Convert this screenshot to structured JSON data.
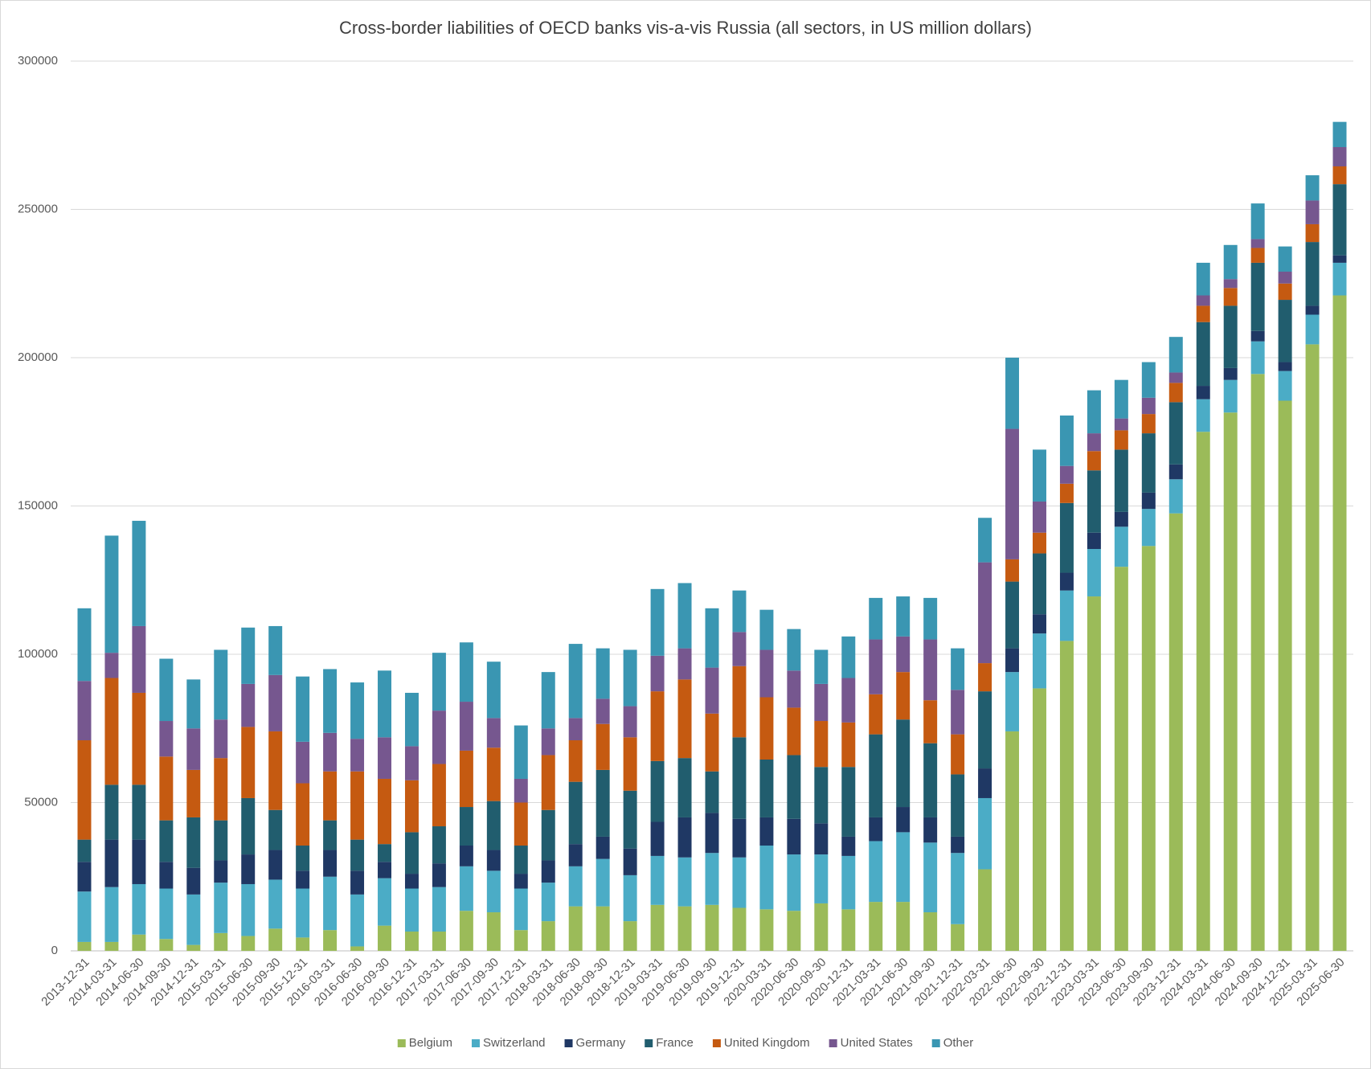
{
  "chart_data": {
    "type": "stacked_bar",
    "title": "Cross-border liabilities of OECD banks vis-a-vis Russia (all sectors, in US million dollars)",
    "categories": [
      "2013-12-31",
      "2014-03-31",
      "2014-06-30",
      "2014-09-30",
      "2014-12-31",
      "2015-03-31",
      "2015-06-30",
      "2015-09-30",
      "2015-12-31",
      "2016-03-31",
      "2016-06-30",
      "2016-09-30",
      "2016-12-31",
      "2017-03-31",
      "2017-06-30",
      "2017-09-30",
      "2017-12-31",
      "2018-03-31",
      "2018-06-30",
      "2018-09-30",
      "2018-12-31",
      "2019-03-31",
      "2019-06-30",
      "2019-09-30",
      "2019-12-31",
      "2020-03-31",
      "2020-06-30",
      "2020-09-30",
      "2020-12-31",
      "2021-03-31",
      "2021-06-30",
      "2021-09-30",
      "2021-12-31",
      "2022-03-31",
      "2022-06-30",
      "2022-09-30",
      "2022-12-31",
      "2023-03-31",
      "2023-06-30",
      "2023-09-30",
      "2023-12-31",
      "2024-03-31",
      "2024-06-30",
      "2024-09-30",
      "2024-12-31",
      "2025-03-31",
      "2025-06-30"
    ],
    "series": [
      {
        "name": "Belgium",
        "color": "#9bbb59",
        "values": [
          3000,
          3000,
          5500,
          4000,
          2000,
          6000,
          5000,
          7500,
          4500,
          7000,
          1500,
          8500,
          6500,
          6500,
          13500,
          13000,
          7000,
          10000,
          15000,
          15000,
          10000,
          15500,
          15000,
          15500,
          14500,
          14000,
          13500,
          16000,
          14000,
          16500,
          16500,
          13000,
          9000,
          27500,
          74000,
          88500,
          104500,
          119500,
          129500,
          136500,
          147500,
          175000,
          181500,
          194500,
          185500,
          204500,
          221000
        ]
      },
      {
        "name": "Switzerland",
        "color": "#4bacc6",
        "values": [
          17000,
          18500,
          17000,
          17000,
          17000,
          17000,
          17500,
          16500,
          16500,
          18000,
          17500,
          16000,
          14500,
          15000,
          15000,
          14000,
          14000,
          13000,
          13500,
          16000,
          15500,
          16500,
          16500,
          17500,
          17000,
          21500,
          19000,
          16500,
          18000,
          20500,
          23500,
          23500,
          24000,
          24000,
          20000,
          18500,
          17000,
          16000,
          13500,
          12500,
          11500,
          11000,
          11000,
          11000,
          10000,
          10000,
          11000
        ]
      },
      {
        "name": "Germany",
        "color": "#1f3864",
        "values": [
          10000,
          16000,
          15000,
          9000,
          9000,
          7500,
          10000,
          10000,
          6000,
          9000,
          8000,
          5500,
          5000,
          8000,
          7000,
          7000,
          5000,
          7500,
          7500,
          7500,
          9000,
          11500,
          13500,
          13500,
          13000,
          9500,
          12000,
          10500,
          6500,
          8000,
          8500,
          8500,
          5500,
          10000,
          8000,
          6500,
          6000,
          5500,
          5000,
          5500,
          5000,
          4500,
          4000,
          3500,
          3000,
          3000,
          2500
        ]
      },
      {
        "name": "France",
        "color": "#215d6e",
        "values": [
          7500,
          18500,
          18500,
          14000,
          17000,
          13500,
          19000,
          13500,
          8500,
          10000,
          10500,
          6000,
          14000,
          12500,
          13000,
          16500,
          9500,
          17000,
          21000,
          22500,
          19500,
          20500,
          20000,
          14000,
          27500,
          19500,
          21500,
          19000,
          23500,
          28000,
          29500,
          25000,
          21000,
          26000,
          22500,
          20500,
          23500,
          21000,
          21000,
          20000,
          21000,
          21500,
          21000,
          23000,
          21000,
          21500,
          24000
        ]
      },
      {
        "name": "United Kingdom",
        "color": "#c55a11",
        "values": [
          33500,
          36000,
          31000,
          21500,
          16000,
          21000,
          24000,
          26500,
          21000,
          16500,
          23000,
          22000,
          17500,
          21000,
          19000,
          18000,
          14500,
          18500,
          14000,
          15500,
          18000,
          23500,
          26500,
          19500,
          24000,
          21000,
          16000,
          15500,
          15000,
          13500,
          16000,
          14500,
          13500,
          9500,
          7500,
          7000,
          6500,
          6500,
          6500,
          6500,
          6500,
          5500,
          6000,
          5000,
          5500,
          6000,
          6000
        ]
      },
      {
        "name": "United States",
        "color": "#76578f",
        "values": [
          20000,
          8500,
          22500,
          12000,
          14000,
          13000,
          14500,
          19000,
          14000,
          13000,
          11000,
          14000,
          11500,
          18000,
          16500,
          10000,
          8000,
          9000,
          7500,
          8500,
          10500,
          12000,
          10500,
          15500,
          11500,
          16000,
          12500,
          12500,
          15000,
          18500,
          12000,
          20500,
          15000,
          34000,
          44000,
          10500,
          6000,
          6000,
          4000,
          5500,
          3500,
          3500,
          3000,
          3000,
          4000,
          8000,
          6500
        ]
      },
      {
        "name": "Other",
        "color": "#3a96b2",
        "values": [
          24500,
          39500,
          35500,
          21000,
          16500,
          23500,
          19000,
          16500,
          22000,
          21500,
          19000,
          22500,
          18000,
          19500,
          20000,
          19000,
          18000,
          19000,
          25000,
          17000,
          19000,
          22500,
          22000,
          20000,
          14000,
          13500,
          14000,
          11500,
          14000,
          14000,
          13500,
          14000,
          14000,
          15000,
          24000,
          17500,
          17000,
          14500,
          13000,
          12000,
          12000,
          11000,
          11500,
          12000,
          8500,
          8500,
          8500
        ]
      }
    ],
    "ylim": [
      0,
      300000
    ],
    "yticks": [
      0,
      50000,
      100000,
      150000,
      200000,
      250000,
      300000
    ],
    "grid": true,
    "legend": "bottom"
  }
}
